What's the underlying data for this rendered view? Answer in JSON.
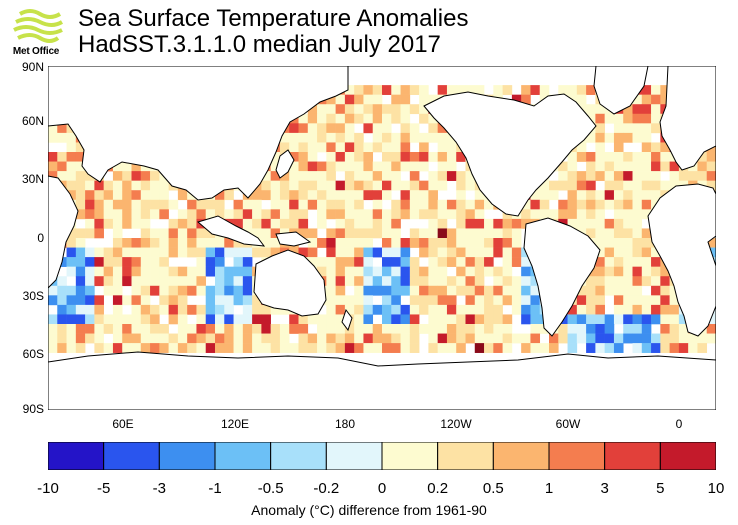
{
  "brand": {
    "name": "Met Office"
  },
  "title": "Sea Surface Temperature Anomalies",
  "subtitle": "HadSST.3.1.1.0 median July 2017",
  "map": {
    "lat_labels": [
      "90N",
      "60N",
      "30N",
      "0",
      "30S",
      "60S",
      "90S"
    ],
    "lon_labels": [
      "60E",
      "120E",
      "180",
      "120W",
      "60W",
      "0"
    ],
    "ocean_color": "#ffffff",
    "land_outline_color": "#000000"
  },
  "colorbar": {
    "tick_labels": [
      "-10",
      "-5",
      "-3",
      "-1",
      "-0.5",
      "-0.2",
      "0",
      "0.2",
      "0.5",
      "1",
      "3",
      "5",
      "10"
    ],
    "colors": [
      "#2414c8",
      "#2a55ee",
      "#3d8ff0",
      "#6cc0f6",
      "#a8e0fa",
      "#e2f6fb",
      "#fdfbd0",
      "#fde2a4",
      "#fbb56f",
      "#f47d4f",
      "#e2403a",
      "#c41a2b",
      "#8a0a1a"
    ],
    "caption": "Anomaly (°C) difference from 1961-90"
  }
}
